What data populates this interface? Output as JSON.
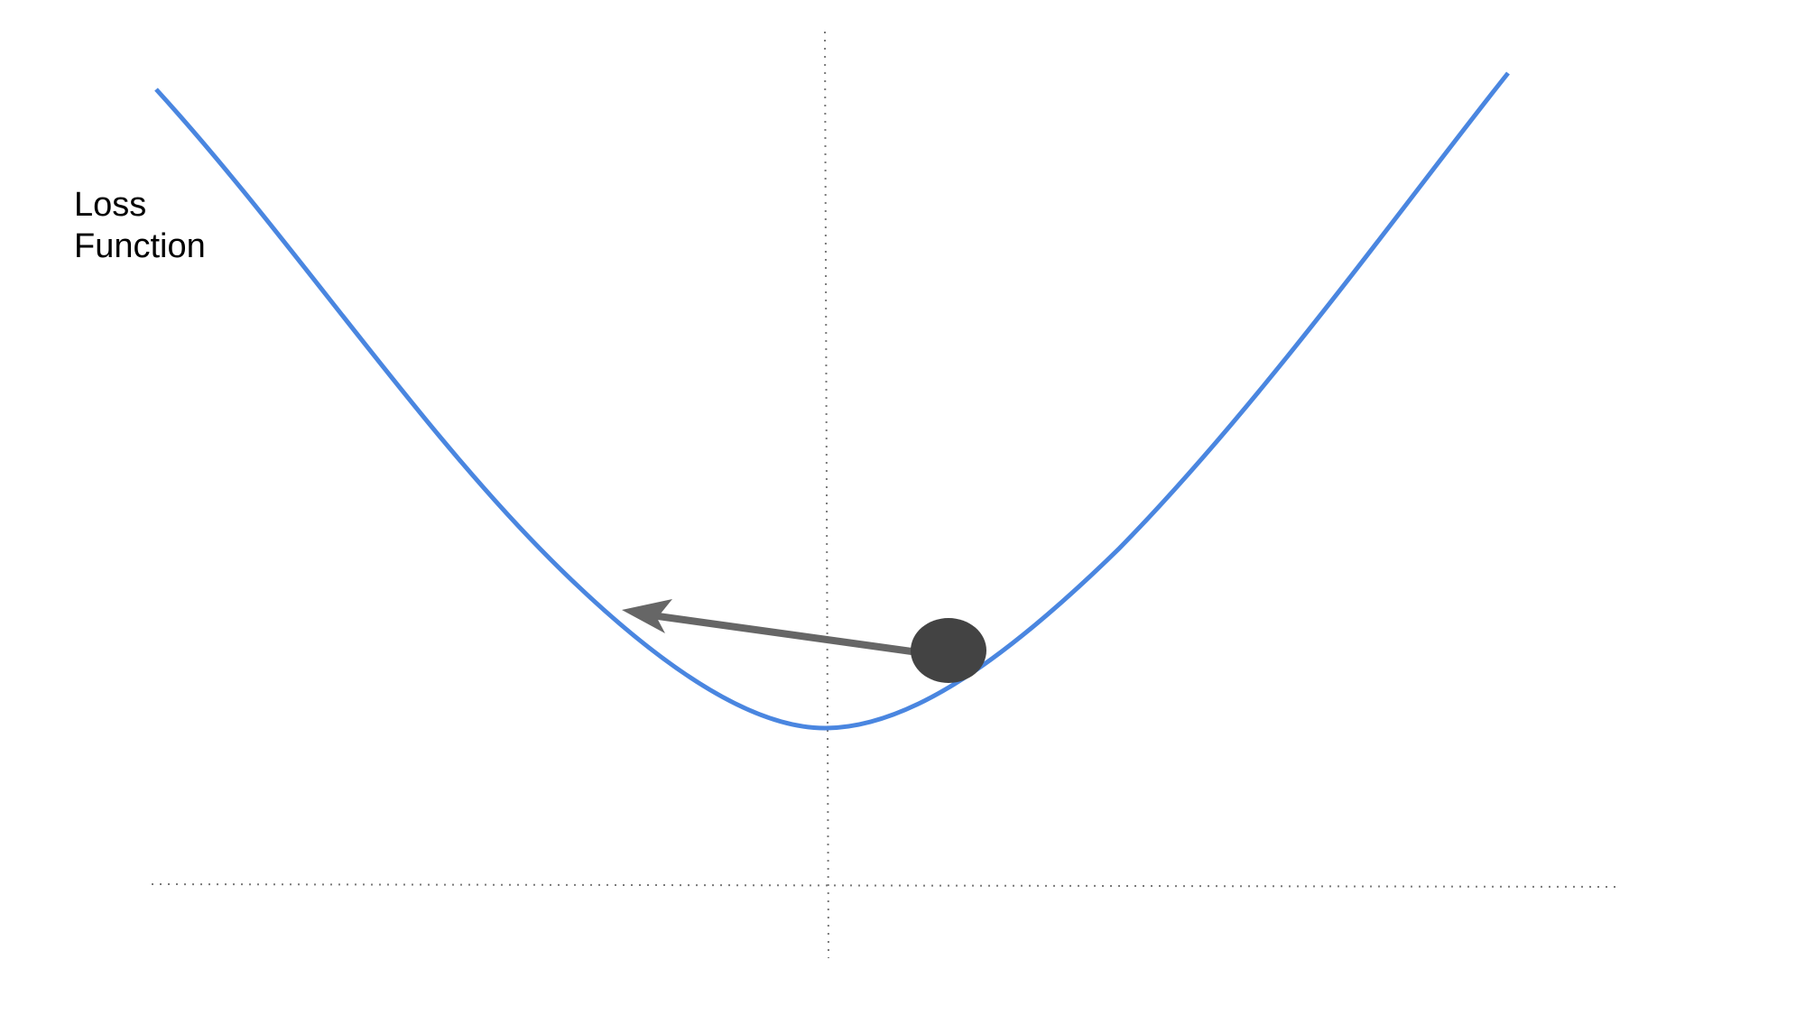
{
  "label": {
    "lines": [
      "Loss",
      "Function"
    ]
  },
  "colors": {
    "curve": "#4a86e0",
    "axes": "#7a7a7a",
    "ball": "#434343",
    "arrow": "#666666",
    "text": "#000000"
  },
  "elements": {
    "curve": "loss-curve",
    "ball": "ball",
    "arrow": "gradient-step-arrow",
    "x_axis": "dotted-horizontal-axis",
    "y_axis": "dotted-vertical-axis"
  }
}
